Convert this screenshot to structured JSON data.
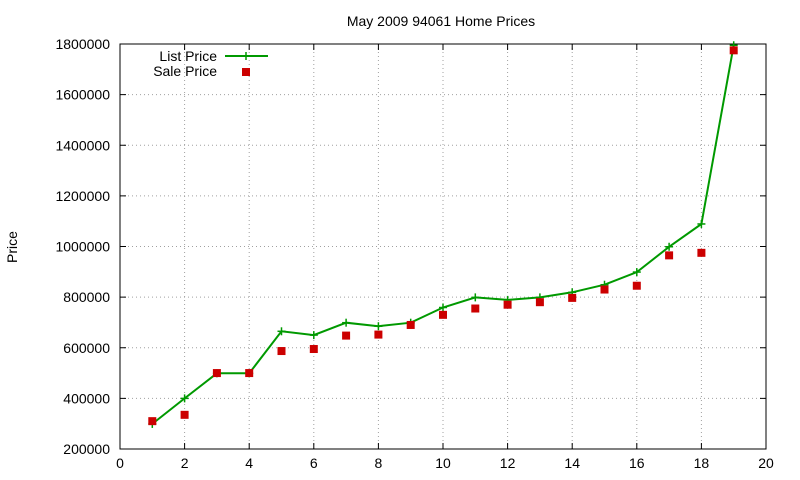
{
  "chart_data": {
    "type": "line",
    "title": "May 2009 94061 Home Prices",
    "xlabel": "",
    "ylabel": "Price",
    "xlim": [
      0,
      20
    ],
    "ylim": [
      200000,
      1800000
    ],
    "xticks": [
      0,
      2,
      4,
      6,
      8,
      10,
      12,
      14,
      16,
      18,
      20
    ],
    "yticks": [
      200000,
      400000,
      600000,
      800000,
      1000000,
      1200000,
      1400000,
      1600000,
      1800000
    ],
    "grid": true,
    "legend_position": "top-left",
    "series": [
      {
        "name": "List Price",
        "style": "line+cross",
        "color": "#009900",
        "x": [
          1,
          2,
          3,
          4,
          5,
          6,
          7,
          8,
          9,
          10,
          11,
          12,
          13,
          14,
          15,
          16,
          17,
          18,
          19
        ],
        "y": [
          299000,
          400000,
          499000,
          499000,
          665000,
          650000,
          699000,
          685000,
          699000,
          759000,
          799000,
          789000,
          799000,
          819000,
          849000,
          899000,
          999000,
          1089000,
          1795000
        ]
      },
      {
        "name": "Sale Price",
        "style": "square",
        "color": "#cc0000",
        "x": [
          1,
          2,
          3,
          4,
          5,
          6,
          7,
          8,
          9,
          10,
          11,
          12,
          13,
          14,
          15,
          16,
          17,
          18,
          19
        ],
        "y": [
          310000,
          335000,
          500000,
          500000,
          587000,
          595000,
          648000,
          652000,
          690000,
          730000,
          755000,
          770000,
          780000,
          797000,
          830000,
          845000,
          965000,
          975000,
          1775000
        ]
      }
    ]
  }
}
